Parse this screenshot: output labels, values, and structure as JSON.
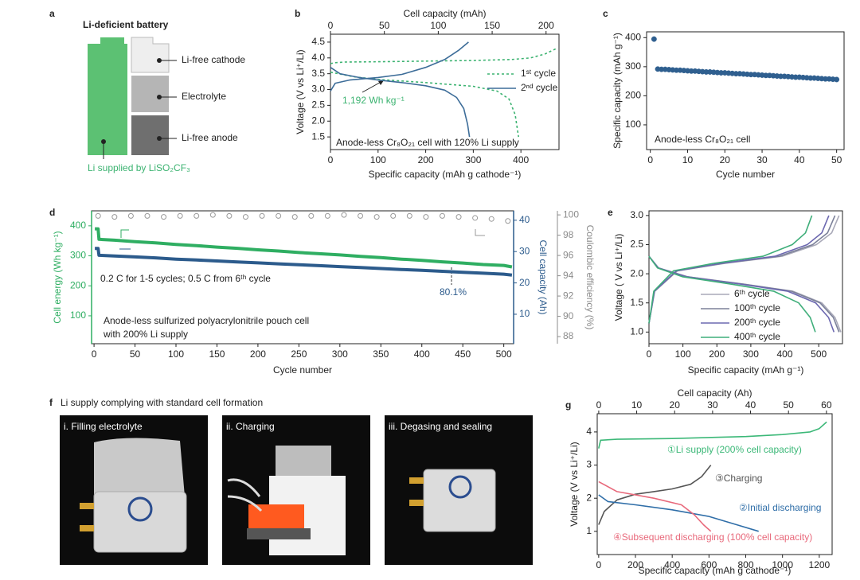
{
  "panels": {
    "a": {
      "letter": "a",
      "title": "Li-deficient battery",
      "labels": [
        "Li-free cathode",
        "Electrolyte",
        "Li-free anode"
      ],
      "note": "Li supplied by LiSO₂CF₃"
    },
    "f": {
      "letter": "f",
      "title": "Li supply complying with standard cell formation",
      "steps": [
        "i. Filling electrolyte",
        "ii. Charging",
        "iii. Degasing and sealing"
      ]
    }
  },
  "chart_data": [
    {
      "panel": "b",
      "type": "line",
      "xlabel": "Specific capacity (mAh g cathode⁻¹)",
      "x2label": "Cell capacity (mAh)",
      "ylabel": "Voltage (V vs Li⁺/Li)",
      "xlim": [
        0,
        480
      ],
      "xticks": [
        0,
        100,
        200,
        300,
        400
      ],
      "x2lim": [
        0,
        212
      ],
      "x2ticks": [
        0,
        50,
        100,
        150,
        200
      ],
      "ylim": [
        1.1,
        4.75
      ],
      "yticks": [
        1.5,
        {
          "value": 2,
          "label": "2.0"
        },
        2.5,
        {
          "value": 3,
          "label": "3.0"
        },
        3.5,
        {
          "value": 4,
          "label": "4.0"
        },
        4.5
      ],
      "legend": "upper right",
      "series": [
        {
          "name": "1ˢᵗ cycle",
          "color": "#3cb371",
          "style": "dashed",
          "x": [
            0,
            10,
            30,
            100,
            200,
            300,
            380,
            420,
            450,
            475,
            null,
            0,
            50,
            100,
            200,
            300,
            350,
            375,
            388,
            395
          ],
          "values": [
            3.82,
            3.85,
            3.87,
            3.88,
            3.9,
            3.92,
            3.95,
            4.0,
            4.12,
            4.3,
            null,
            3.55,
            3.4,
            3.32,
            3.22,
            3.1,
            2.95,
            2.7,
            2.2,
            1.5
          ]
        },
        {
          "name": "2ⁿᵈ cycle",
          "color": "#3d6d99",
          "style": "solid",
          "x": [
            0,
            10,
            40,
            100,
            150,
            200,
            240,
            270,
            290,
            null,
            0,
            20,
            60,
            100,
            150,
            200,
            240,
            265,
            280,
            288,
            292
          ],
          "values": [
            2.95,
            3.2,
            3.3,
            3.38,
            3.48,
            3.7,
            3.95,
            4.25,
            4.5,
            null,
            3.7,
            3.5,
            3.38,
            3.3,
            3.22,
            3.12,
            2.98,
            2.75,
            2.4,
            1.9,
            1.5
          ]
        }
      ],
      "annotations": [
        {
          "text": "1,192 Wh kg⁻¹",
          "color": "#3cb371"
        },
        {
          "text": "Anode-less Cr₈O₂₁ cell with 120% Li supply",
          "color": "#222222"
        }
      ]
    },
    {
      "panel": "c",
      "type": "scatter",
      "xlabel": "Cycle number",
      "ylabel": "Specific capacity (mAh g⁻¹)",
      "xlim": [
        -1,
        52
      ],
      "xticks": [
        0,
        10,
        20,
        30,
        40,
        50
      ],
      "ylim": [
        15,
        420
      ],
      "yticks": [
        100,
        200,
        300,
        400
      ],
      "series": [
        {
          "color": "#2f5f8f",
          "x": [
            1,
            2,
            3,
            4,
            5,
            6,
            7,
            8,
            9,
            10,
            11,
            12,
            13,
            14,
            15,
            16,
            17,
            18,
            19,
            20,
            21,
            22,
            23,
            24,
            25,
            26,
            27,
            28,
            29,
            30,
            31,
            32,
            33,
            34,
            35,
            36,
            37,
            38,
            39,
            40,
            41,
            42,
            43,
            44,
            45,
            46,
            47,
            48,
            49,
            50
          ],
          "values": [
            395,
            292,
            291,
            291,
            290,
            289,
            288,
            288,
            287,
            286,
            285,
            285,
            284,
            283,
            282,
            282,
            281,
            280,
            279,
            279,
            278,
            277,
            276,
            276,
            275,
            274,
            273,
            273,
            272,
            271,
            270,
            270,
            269,
            268,
            267,
            267,
            266,
            265,
            264,
            264,
            263,
            262,
            261,
            261,
            260,
            259,
            258,
            258,
            257,
            256
          ]
        }
      ],
      "annotations": [
        {
          "text": "Anode-less Cr₈O₂₁ cell",
          "color": "#222222"
        }
      ]
    },
    {
      "panel": "d",
      "type": "line",
      "xlabel": "Cycle number",
      "ylabel": "Cell energy (Wh kg⁻¹)",
      "y2label": "Cell capacity (Ah)",
      "y3label": "Coulombic efficiency (%)",
      "xlim": [
        -3,
        512
      ],
      "xticks": [
        0,
        50,
        100,
        150,
        200,
        250,
        300,
        350,
        400,
        450,
        500
      ],
      "ylim": [
        7,
        450
      ],
      "yticks": [
        100,
        200,
        300,
        400
      ],
      "y2lim": [
        0.6,
        43
      ],
      "y2ticks": [
        10,
        20,
        30,
        40
      ],
      "y3lim": [
        87.3,
        100.4
      ],
      "y3ticks": [
        88,
        90,
        92,
        94,
        96,
        98,
        100
      ],
      "axis_colors": {
        "y": "#2fae62",
        "y2": "#2c5b8c",
        "y3": "#8c8c8c"
      },
      "series": [
        {
          "color": "#2fae62",
          "axis": "y",
          "x": [
            1,
            2,
            3,
            4,
            5,
            6,
            25,
            50,
            75,
            100,
            125,
            150,
            175,
            200,
            225,
            250,
            275,
            300,
            325,
            350,
            375,
            400,
            425,
            450,
            475,
            500,
            510
          ],
          "values": [
            390,
            390,
            390,
            390,
            390,
            355,
            352,
            347,
            343,
            338,
            334,
            329,
            325,
            320,
            316,
            311,
            307,
            303,
            298,
            294,
            289,
            285,
            280,
            276,
            271,
            268,
            263
          ]
        },
        {
          "color": "#2c5b8c",
          "axis": "y2",
          "x": [
            1,
            2,
            3,
            4,
            5,
            6,
            25,
            50,
            75,
            100,
            125,
            150,
            175,
            200,
            225,
            250,
            275,
            300,
            325,
            350,
            375,
            400,
            425,
            450,
            475,
            500,
            510
          ],
          "values": [
            31,
            31,
            31,
            31,
            31,
            28.8,
            28.6,
            28.3,
            28,
            27.6,
            27.3,
            27,
            26.7,
            26.4,
            26.1,
            25.8,
            25.5,
            25.2,
            24.9,
            24.6,
            24.3,
            24,
            23.7,
            23.4,
            23.1,
            22.8,
            22.5
          ]
        },
        {
          "color": "#999999",
          "axis": "y3",
          "marker": "open-circle",
          "x": [
            5,
            25,
            45,
            65,
            85,
            105,
            125,
            145,
            165,
            185,
            205,
            225,
            245,
            265,
            285,
            305,
            325,
            345,
            365,
            385,
            405,
            425,
            445,
            465,
            485,
            505
          ],
          "values": [
            99.9,
            99.8,
            99.9,
            99.9,
            99.8,
            99.9,
            99.9,
            100,
            99.9,
            99.8,
            99.9,
            99.9,
            99.8,
            99.9,
            99.9,
            100,
            99.9,
            99.8,
            99.9,
            99.9,
            99.8,
            99.9,
            99.8,
            99.7,
            99.6,
            99.4
          ]
        }
      ],
      "annotations": [
        {
          "text": "0.2 C for 1-5 cycles; 0.5 C from 6ᵗʰ cycle",
          "color": "#222222"
        },
        {
          "text": "80.1%",
          "color": "#2c5b8c"
        },
        {
          "text": "Anode-less sulfurized polyacrylonitrile pouch cell",
          "color": "#222222"
        },
        {
          "text": "with 200% Li supply",
          "color": "#222222"
        }
      ]
    },
    {
      "panel": "e",
      "type": "line",
      "xlabel": "Specific capacity (mAh g⁻¹)",
      "ylabel": "Voltage ( V vs Li⁺/Li)",
      "xlim": [
        0,
        570
      ],
      "xticks": [
        0,
        100,
        200,
        300,
        400,
        500
      ],
      "ylim": [
        0.8,
        3.08
      ],
      "yticks": [
        {
          "value": 1,
          "label": "1.0"
        },
        1.5,
        {
          "value": 2,
          "label": "2.0"
        },
        2.5,
        {
          "value": 3,
          "label": "3.0"
        }
      ],
      "legend": "lower right",
      "series": [
        {
          "name": "6ᵗʰ cycle",
          "color": "#a9a9b8",
          "x": [
            0,
            17,
            84,
            224,
            392,
            493,
            538,
            560,
            null,
            0,
            28,
            113,
            283,
            424,
            509,
            548,
            565
          ],
          "values": [
            1.15,
            1.7,
            2.05,
            2.18,
            2.3,
            2.5,
            2.7,
            3,
            null,
            2.3,
            2.1,
            1.95,
            1.82,
            1.7,
            1.5,
            1.25,
            1
          ]
        },
        {
          "name": "100ᵗʰ cycle",
          "color": "#7b8099",
          "x": [
            0,
            16,
            82,
            219,
            384,
            482,
            526,
            548,
            null,
            0,
            28,
            112,
            280,
            420,
            504,
            543,
            560
          ],
          "values": [
            1.15,
            1.7,
            2.05,
            2.18,
            2.3,
            2.5,
            2.7,
            3,
            null,
            2.3,
            2.1,
            1.95,
            1.82,
            1.7,
            1.5,
            1.25,
            1
          ]
        },
        {
          "name": "200ᵗʰ cycle",
          "color": "#6c68b0",
          "x": [
            0,
            16,
            80,
            212,
            371,
            466,
            509,
            530,
            null,
            0,
            27,
            109,
            273,
            409,
            491,
            529,
            545
          ],
          "values": [
            1.15,
            1.7,
            2.05,
            2.18,
            2.3,
            2.5,
            2.7,
            3,
            null,
            2.3,
            2.1,
            1.95,
            1.82,
            1.7,
            1.5,
            1.25,
            1
          ]
        },
        {
          "name": "400ᵗʰ cycle",
          "color": "#3fae7a",
          "x": [
            0,
            14,
            72,
            192,
            336,
            422,
            461,
            480,
            null,
            0,
            25,
            98,
            245,
            368,
            441,
            475,
            490
          ],
          "values": [
            1.15,
            1.7,
            2.05,
            2.18,
            2.3,
            2.5,
            2.7,
            3,
            null,
            2.3,
            2.1,
            1.95,
            1.82,
            1.7,
            1.5,
            1.25,
            1
          ]
        }
      ]
    },
    {
      "panel": "g",
      "type": "line",
      "xlabel": "Specific capacity (mAh g cathode⁻¹)",
      "x2label": "Cell capacity (Ah)",
      "ylabel": "Voltage (V vs Li⁺/Li)",
      "xlim": [
        -8,
        1270
      ],
      "xticks": [
        0,
        200,
        400,
        600,
        800,
        1000,
        1200
      ],
      "x2lim": [
        -0.4,
        61.5
      ],
      "x2ticks": [
        0,
        10,
        20,
        30,
        40,
        50,
        60
      ],
      "ylim": [
        0.3,
        4.55
      ],
      "yticks": [
        1,
        2,
        3,
        4
      ],
      "legend": "inline",
      "series": [
        {
          "name": "①Li supply (200% cell capacity)",
          "color": "#3cb878",
          "x": [
            0,
            10,
            100,
            400,
            800,
            1000,
            1150,
            1200,
            1240
          ],
          "values": [
            3.5,
            3.75,
            3.78,
            3.8,
            3.86,
            3.92,
            4,
            4.1,
            4.3
          ]
        },
        {
          "name": "③Charging",
          "color": "#555555",
          "x": [
            0,
            30,
            100,
            200,
            300,
            400,
            500,
            560,
            610
          ],
          "values": [
            1.2,
            1.6,
            1.95,
            2.12,
            2.2,
            2.28,
            2.42,
            2.65,
            3
          ]
        },
        {
          "name": "②Initial discharging",
          "color": "#2f6ea8",
          "x": [
            0,
            50,
            200,
            400,
            600,
            750,
            870
          ],
          "values": [
            2.1,
            1.9,
            1.8,
            1.65,
            1.45,
            1.2,
            1
          ]
        },
        {
          "name": "④Subsequent discharging (100% cell capacity)",
          "color": "#e8697b",
          "x": [
            0,
            100,
            300,
            450,
            520,
            570,
            610
          ],
          "values": [
            2.5,
            2.2,
            2,
            1.8,
            1.5,
            1.2,
            1
          ]
        }
      ]
    }
  ]
}
